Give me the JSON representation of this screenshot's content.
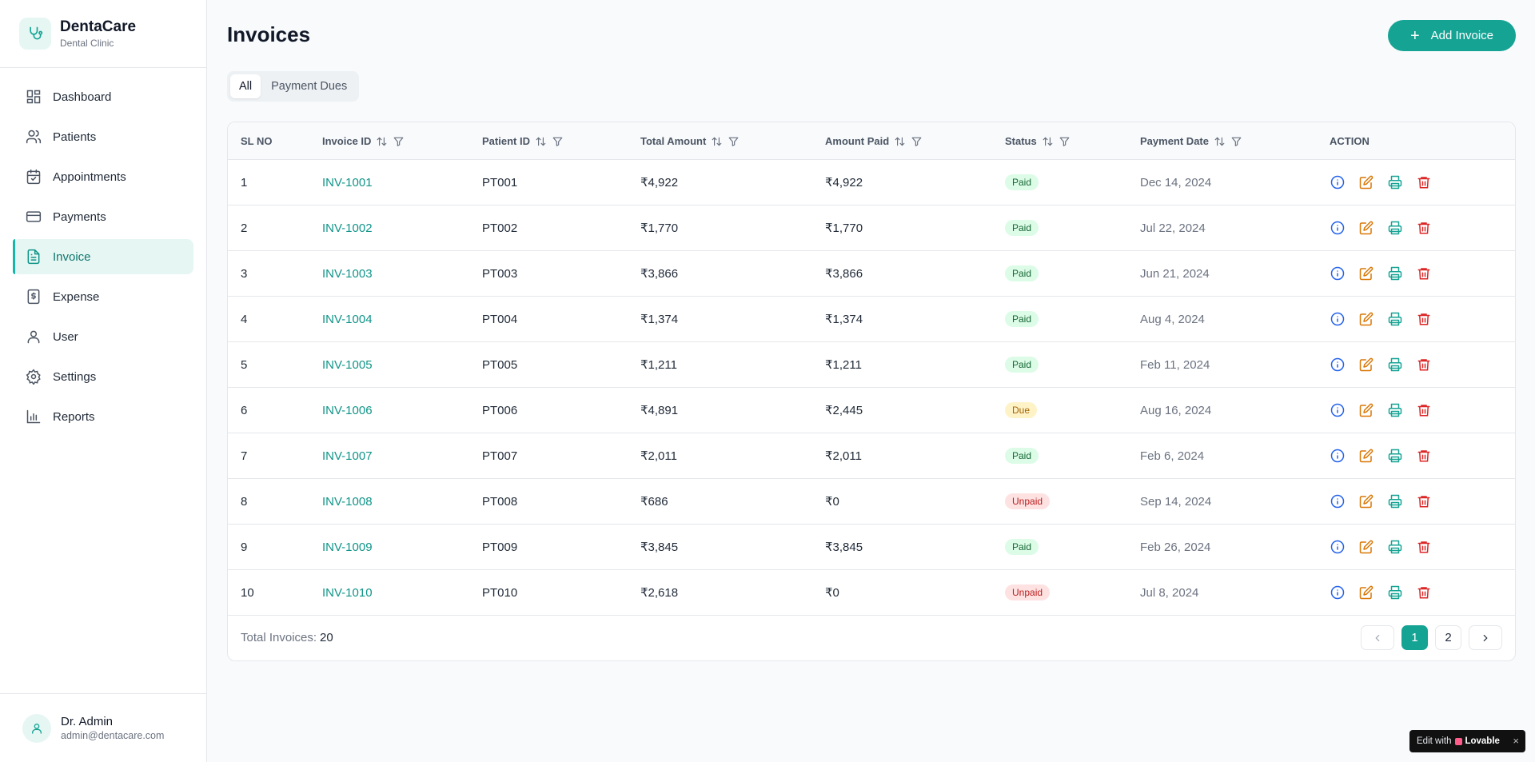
{
  "brand": {
    "name": "DentaCare",
    "subtitle": "Dental Clinic"
  },
  "nav": [
    {
      "label": "Dashboard",
      "icon": "dashboard-icon",
      "active": false
    },
    {
      "label": "Patients",
      "icon": "users-icon",
      "active": false
    },
    {
      "label": "Appointments",
      "icon": "calendar-icon",
      "active": false
    },
    {
      "label": "Payments",
      "icon": "credit-card-icon",
      "active": false
    },
    {
      "label": "Invoice",
      "icon": "file-text-icon",
      "active": true
    },
    {
      "label": "Expense",
      "icon": "receipt-icon",
      "active": false
    },
    {
      "label": "User",
      "icon": "user-icon",
      "active": false
    },
    {
      "label": "Settings",
      "icon": "gear-icon",
      "active": false
    },
    {
      "label": "Reports",
      "icon": "bar-chart-icon",
      "active": false
    }
  ],
  "user": {
    "name": "Dr. Admin",
    "email": "admin@dentacare.com"
  },
  "page": {
    "title": "Invoices",
    "add_label": "Add Invoice"
  },
  "tabs": [
    {
      "label": "All",
      "active": true
    },
    {
      "label": "Payment Dues",
      "active": false
    }
  ],
  "table": {
    "columns": [
      "SL NO",
      "Invoice ID",
      "Patient ID",
      "Total Amount",
      "Amount Paid",
      "Status",
      "Payment Date",
      "ACTION"
    ],
    "rows": [
      {
        "sl": "1",
        "invoice": "INV-1001",
        "patient": "PT001",
        "total": "₹4,922",
        "paid": "₹4,922",
        "status": "Paid",
        "date": "Dec 14, 2024"
      },
      {
        "sl": "2",
        "invoice": "INV-1002",
        "patient": "PT002",
        "total": "₹1,770",
        "paid": "₹1,770",
        "status": "Paid",
        "date": "Jul 22, 2024"
      },
      {
        "sl": "3",
        "invoice": "INV-1003",
        "patient": "PT003",
        "total": "₹3,866",
        "paid": "₹3,866",
        "status": "Paid",
        "date": "Jun 21, 2024"
      },
      {
        "sl": "4",
        "invoice": "INV-1004",
        "patient": "PT004",
        "total": "₹1,374",
        "paid": "₹1,374",
        "status": "Paid",
        "date": "Aug 4, 2024"
      },
      {
        "sl": "5",
        "invoice": "INV-1005",
        "patient": "PT005",
        "total": "₹1,211",
        "paid": "₹1,211",
        "status": "Paid",
        "date": "Feb 11, 2024"
      },
      {
        "sl": "6",
        "invoice": "INV-1006",
        "patient": "PT006",
        "total": "₹4,891",
        "paid": "₹2,445",
        "status": "Due",
        "date": "Aug 16, 2024"
      },
      {
        "sl": "7",
        "invoice": "INV-1007",
        "patient": "PT007",
        "total": "₹2,011",
        "paid": "₹2,011",
        "status": "Paid",
        "date": "Feb 6, 2024"
      },
      {
        "sl": "8",
        "invoice": "INV-1008",
        "patient": "PT008",
        "total": "₹686",
        "paid": "₹0",
        "status": "Unpaid",
        "date": "Sep 14, 2024"
      },
      {
        "sl": "9",
        "invoice": "INV-1009",
        "patient": "PT009",
        "total": "₹3,845",
        "paid": "₹3,845",
        "status": "Paid",
        "date": "Feb 26, 2024"
      },
      {
        "sl": "10",
        "invoice": "INV-1010",
        "patient": "PT010",
        "total": "₹2,618",
        "paid": "₹0",
        "status": "Unpaid",
        "date": "Jul 8, 2024"
      }
    ]
  },
  "footer": {
    "total_label": "Total Invoices:",
    "total_value": "20",
    "pages": [
      "1",
      "2"
    ],
    "current_page": "1"
  },
  "badge": {
    "edit_with": "Edit with",
    "brand": "Lovable",
    "close": "×"
  },
  "colors": {
    "accent": "#15a394",
    "link": "#0f9488",
    "info": "#2563eb",
    "edit": "#d97706",
    "print": "#15a394",
    "delete": "#dc2626"
  }
}
